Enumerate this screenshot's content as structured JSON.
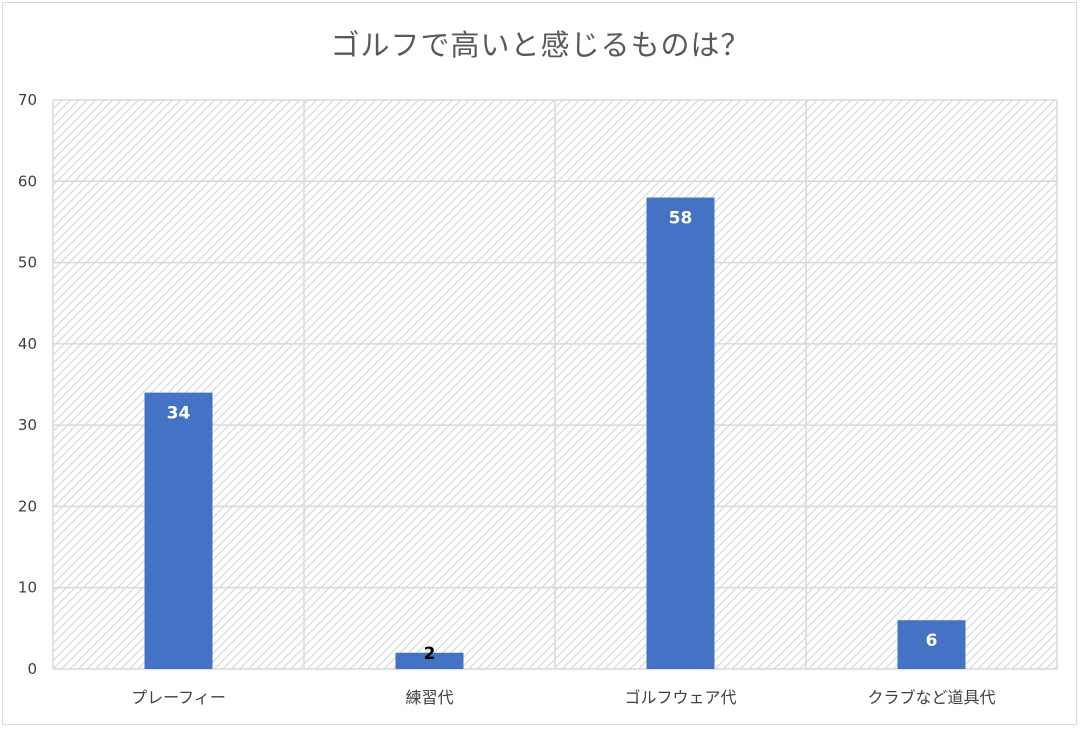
{
  "chart_data": {
    "type": "bar",
    "title": "ゴルフで高いと感じるものは？",
    "categories": [
      "プレーフィー",
      "練習代",
      "ゴルフウェア代",
      "クラブなど道具代"
    ],
    "values": [
      34,
      2,
      58,
      6
    ],
    "ylim": [
      0,
      70
    ],
    "yticks": [
      0,
      10,
      20,
      30,
      40,
      50,
      60,
      70
    ],
    "xlabel": "",
    "ylabel": "",
    "grid": true,
    "legend": "none",
    "bar_color": "#4472c4",
    "plot_background": "hatched light gray",
    "data_labels": [
      "34",
      "2",
      "58",
      "6"
    ]
  }
}
